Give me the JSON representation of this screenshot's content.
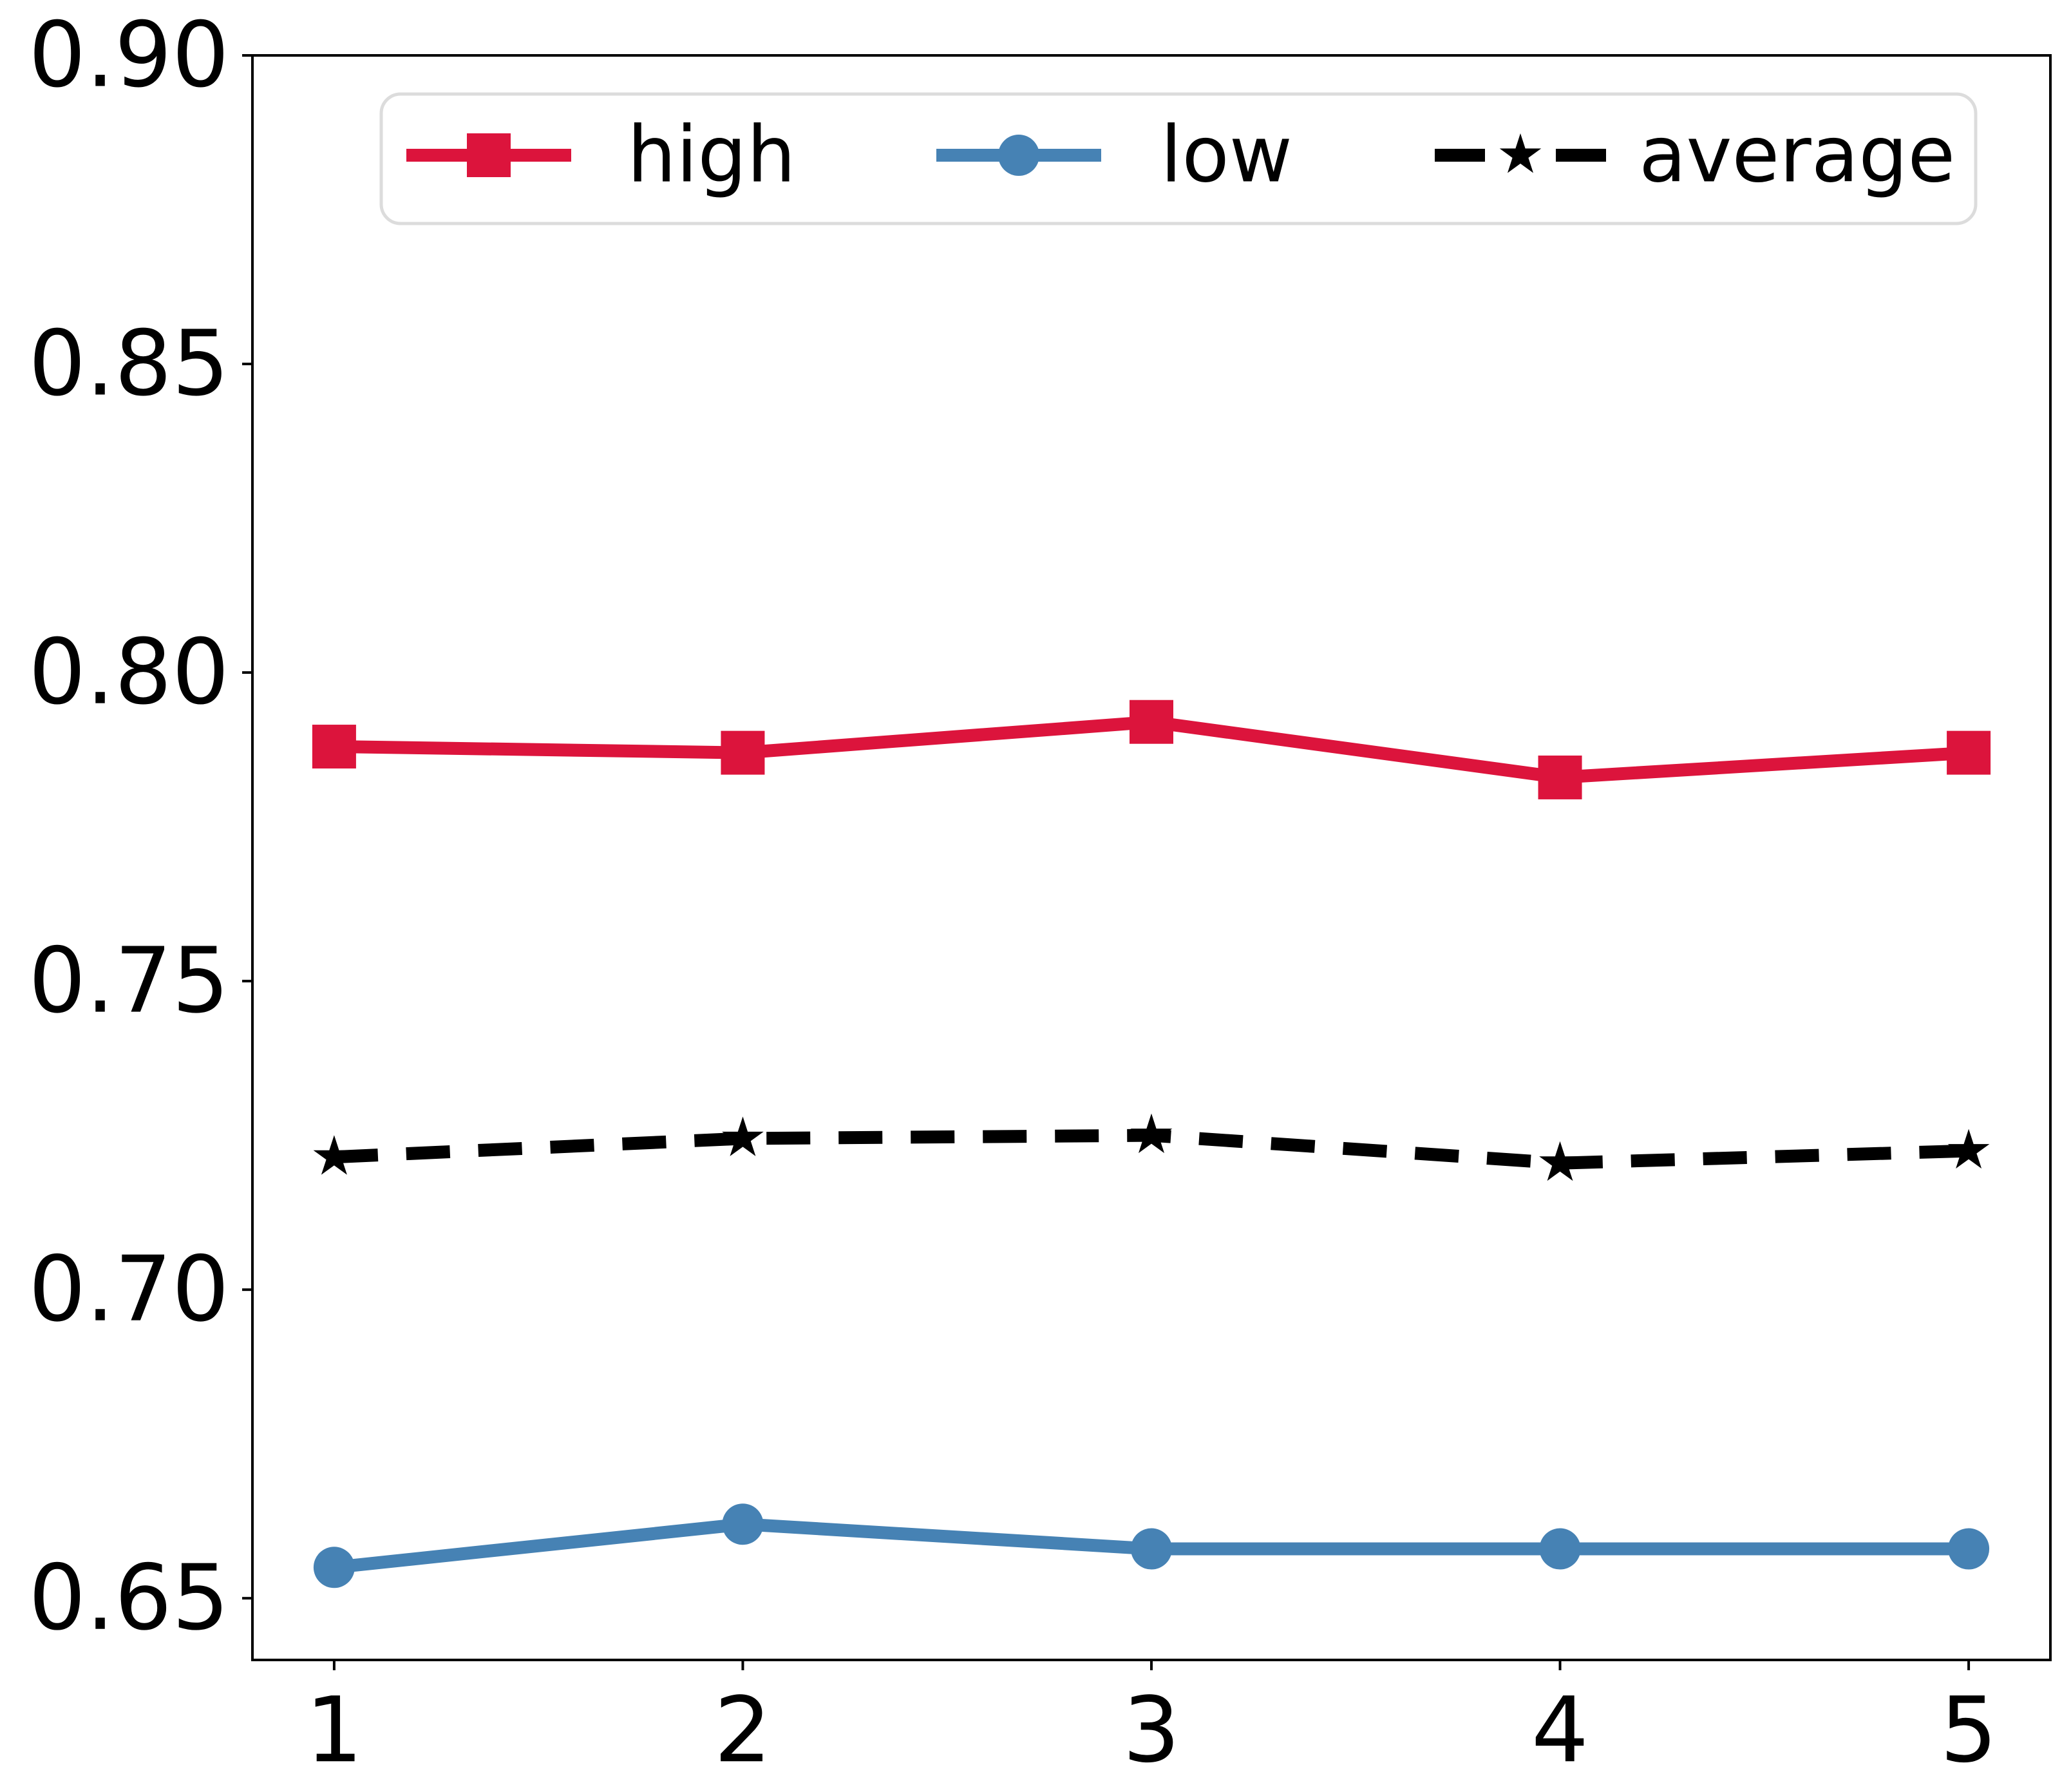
{
  "chart_data": {
    "type": "line",
    "x": [
      1,
      2,
      3,
      4,
      5
    ],
    "xtick_labels": [
      "1",
      "2",
      "3",
      "4",
      "5"
    ],
    "yticks": [
      0.65,
      0.7,
      0.75,
      0.8,
      0.85,
      0.9
    ],
    "ytick_labels": [
      "0.65",
      "0.70",
      "0.75",
      "0.80",
      "0.85",
      "0.90"
    ],
    "xlim": [
      0.8,
      5.2
    ],
    "ylim": [
      0.64,
      0.9
    ],
    "grid": false,
    "title": "",
    "xlabel": "",
    "ylabel": "",
    "legend": {
      "position": "upper center",
      "labels": [
        "high",
        "low",
        "average"
      ],
      "border_color": "#DCDCDC",
      "background": "#FFFFFF"
    },
    "series": [
      {
        "name": "high",
        "color": "#DC143C",
        "marker": "square",
        "linestyle": "solid",
        "values": [
          0.788,
          0.787,
          0.792,
          0.783,
          0.787
        ]
      },
      {
        "name": "low",
        "color": "#4682B4",
        "marker": "circle",
        "linestyle": "solid",
        "values": [
          0.655,
          0.662,
          0.658,
          0.658,
          0.658
        ]
      },
      {
        "name": "average",
        "color": "#000000",
        "marker": "star",
        "linestyle": "dashed",
        "values": [
          0.7215,
          0.7245,
          0.725,
          0.7205,
          0.7225
        ]
      }
    ]
  },
  "colors": {
    "background": "#FFFFFF",
    "axis": "#000000",
    "tick_label": "#000000"
  }
}
